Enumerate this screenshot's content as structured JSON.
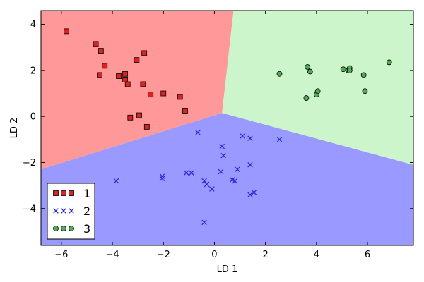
{
  "chart_data": {
    "type": "scatter",
    "title": "",
    "xlabel": "LD 1",
    "ylabel": "LD 2",
    "xlim": [
      -6.8,
      7.8
    ],
    "ylim": [
      -5.6,
      4.6
    ],
    "xticks": [
      -6,
      -4,
      -2,
      0,
      2,
      4,
      6
    ],
    "yticks": [
      -4,
      -2,
      0,
      2,
      4
    ],
    "grid": false,
    "legend_position": "lower-left",
    "regions": [
      {
        "name": "1",
        "color": "#ff9999",
        "polygon": [
          [
            -6.8,
            4.6
          ],
          [
            0.75,
            4.6
          ],
          [
            0.3,
            0.15
          ],
          [
            -6.8,
            -2.3
          ]
        ]
      },
      {
        "name": "2",
        "color": "#9999ff",
        "polygon": [
          [
            -6.8,
            -2.3
          ],
          [
            0.3,
            0.15
          ],
          [
            7.8,
            -2.1
          ],
          [
            7.8,
            -5.6
          ],
          [
            -6.8,
            -5.6
          ]
        ]
      },
      {
        "name": "3",
        "color": "#ccf5cc",
        "polygon": [
          [
            0.75,
            4.6
          ],
          [
            7.8,
            4.6
          ],
          [
            7.8,
            -2.1
          ],
          [
            0.3,
            0.15
          ]
        ]
      }
    ],
    "series": [
      {
        "name": "1",
        "marker": "square",
        "color": "#dd2222",
        "points": [
          [
            -5.8,
            3.7
          ],
          [
            -4.65,
            3.15
          ],
          [
            -4.45,
            2.85
          ],
          [
            -4.3,
            2.2
          ],
          [
            -4.5,
            1.8
          ],
          [
            -3.75,
            1.75
          ],
          [
            -3.5,
            1.85
          ],
          [
            -3.5,
            1.6
          ],
          [
            -3.4,
            1.4
          ],
          [
            -3.05,
            2.45
          ],
          [
            -2.75,
            2.75
          ],
          [
            -2.8,
            1.4
          ],
          [
            -2.5,
            0.95
          ],
          [
            -2.0,
            1.0
          ],
          [
            -1.35,
            0.85
          ],
          [
            -1.15,
            0.25
          ],
          [
            -2.95,
            0.05
          ],
          [
            -3.3,
            -0.05
          ],
          [
            -2.65,
            -0.45
          ]
        ]
      },
      {
        "name": "2",
        "marker": "x",
        "color": "#2222dd",
        "points": [
          [
            -3.85,
            -2.8
          ],
          [
            -2.05,
            -2.6
          ],
          [
            -2.05,
            -2.7
          ],
          [
            -1.1,
            -2.45
          ],
          [
            -0.9,
            -2.45
          ],
          [
            -0.65,
            -0.7
          ],
          [
            -0.4,
            -2.8
          ],
          [
            -0.3,
            -2.95
          ],
          [
            -0.1,
            -3.15
          ],
          [
            -0.4,
            -4.6
          ],
          [
            0.3,
            -1.3
          ],
          [
            0.35,
            -1.7
          ],
          [
            0.25,
            -2.4
          ],
          [
            0.7,
            -2.75
          ],
          [
            0.8,
            -2.8
          ],
          [
            0.9,
            -2.3
          ],
          [
            1.1,
            -0.85
          ],
          [
            1.4,
            -0.95
          ],
          [
            1.4,
            -2.1
          ],
          [
            1.4,
            -3.4
          ],
          [
            1.55,
            -3.3
          ],
          [
            2.55,
            -1.0
          ]
        ]
      },
      {
        "name": "3",
        "marker": "circle",
        "color": "#55aa55",
        "points": [
          [
            2.55,
            1.85
          ],
          [
            3.65,
            2.15
          ],
          [
            3.75,
            1.95
          ],
          [
            3.6,
            0.8
          ],
          [
            4.0,
            0.95
          ],
          [
            4.05,
            1.1
          ],
          [
            5.05,
            2.05
          ],
          [
            5.25,
            2.0
          ],
          [
            5.3,
            2.1
          ],
          [
            5.3,
            2.0
          ],
          [
            5.85,
            1.8
          ],
          [
            5.9,
            1.1
          ],
          [
            6.85,
            2.35
          ]
        ]
      }
    ]
  }
}
